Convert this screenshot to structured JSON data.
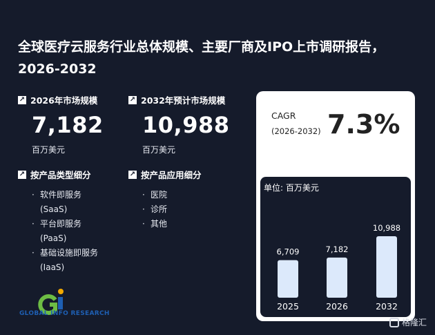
{
  "title": "全球医疗云服务行业总体规模、主要厂商及IPO上市调研报告，2026-2032",
  "stats": [
    {
      "label": "2026年市场规模",
      "value": "7,182",
      "unit": "百万美元"
    },
    {
      "label": "2032年预计市场规模",
      "value": "10,988",
      "unit": "百万美元"
    }
  ],
  "segments": [
    {
      "label": "按产品类型细分",
      "items": [
        {
          "zh": "软件即服务",
          "en": "(SaaS)"
        },
        {
          "zh": "平台即服务",
          "en": "(PaaS)"
        },
        {
          "zh": "基础设施即服务",
          "en": "(IaaS)"
        }
      ]
    },
    {
      "label": "按产品应用细分",
      "items": [
        {
          "zh": "医院",
          "en": ""
        },
        {
          "zh": "诊所",
          "en": ""
        },
        {
          "zh": "其他",
          "en": ""
        }
      ]
    }
  ],
  "cagr": {
    "label": "CAGR",
    "years": "(2026-2032)",
    "value": "7.3%"
  },
  "chart_unit": "单位: 百万美元",
  "chart_data": {
    "type": "bar",
    "categories": [
      "2025",
      "2026",
      "2032"
    ],
    "values": [
      6709,
      7182,
      10988
    ],
    "value_labels": [
      "6,709",
      "7,182",
      "10,988"
    ],
    "unit": "百万美元",
    "bar_color": "#dce9fb"
  },
  "logo": {
    "mark": "Gi",
    "text": "GLOBAL INFO RESEARCH"
  },
  "brand": "格隆汇",
  "icons": {
    "stat": "arrow-up-right-icon",
    "segment": "arrow-up-right-icon"
  }
}
